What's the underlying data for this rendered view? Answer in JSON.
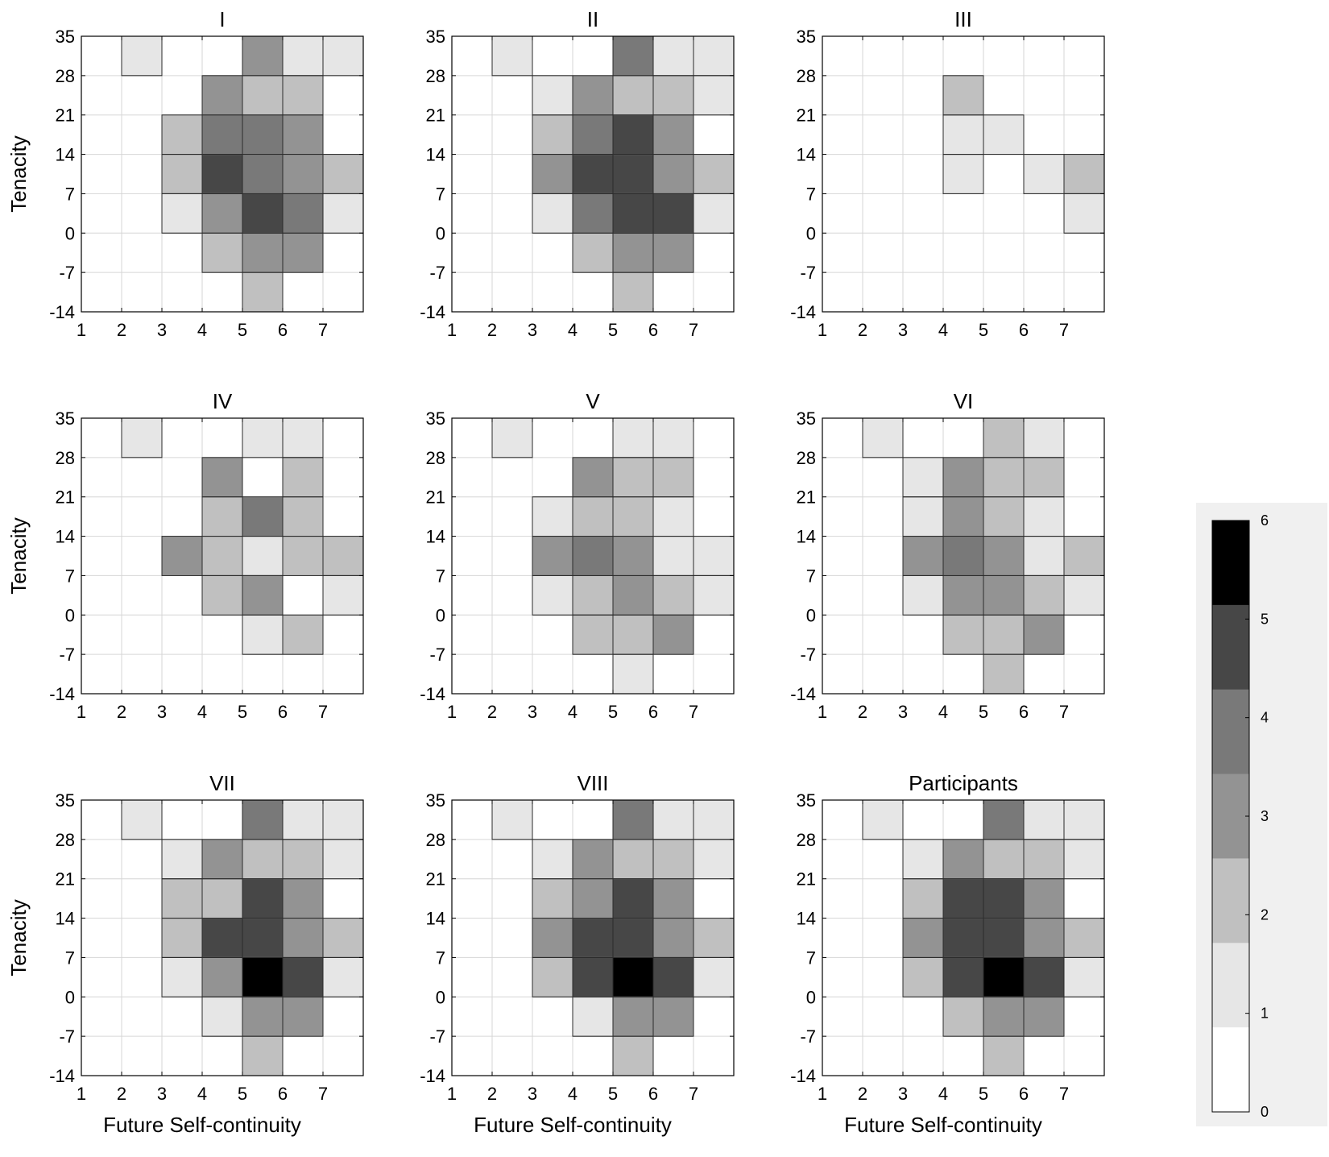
{
  "chart_data": {
    "type": "heatmap",
    "x_ticks": [
      1,
      2,
      3,
      4,
      5,
      6,
      7
    ],
    "xlim": [
      1,
      8
    ],
    "y_ticks": [
      -14,
      -7,
      0,
      7,
      14,
      21,
      28,
      35
    ],
    "ylim": [
      -14,
      35
    ],
    "xlabel": "Future Self-continuity",
    "ylabel": "Tenacity",
    "y_rows_top_to_bottom": [
      "28 to 35",
      "21 to 28",
      "14 to 21",
      "7 to 14",
      "0 to 7",
      "-7 to 0",
      "-14 to -7"
    ],
    "x_cols_left_to_right": [
      "1 to 2",
      "2 to 3",
      "3 to 4",
      "4 to 5",
      "5 to 6",
      "6 to 7",
      "7 to 8"
    ],
    "colorbar": {
      "min": 0,
      "max": 6,
      "ticks": [
        "0",
        "1",
        "2",
        "3",
        "4",
        "5",
        "6"
      ]
    },
    "panels": [
      {
        "title": "I",
        "matrix": [
          [
            0,
            1,
            0,
            0,
            3,
            1,
            1
          ],
          [
            0,
            0,
            0,
            3,
            2,
            2,
            0
          ],
          [
            0,
            0,
            2,
            4,
            4,
            3,
            0
          ],
          [
            0,
            0,
            2,
            5,
            4,
            3,
            2
          ],
          [
            0,
            0,
            1,
            3,
            5,
            4,
            1
          ],
          [
            0,
            0,
            0,
            2,
            3,
            3,
            0
          ],
          [
            0,
            0,
            0,
            0,
            2,
            0,
            0
          ]
        ]
      },
      {
        "title": "II",
        "matrix": [
          [
            0,
            1,
            0,
            0,
            4,
            1,
            1
          ],
          [
            0,
            0,
            1,
            3,
            2,
            2,
            1
          ],
          [
            0,
            0,
            2,
            4,
            5,
            3,
            0
          ],
          [
            0,
            0,
            3,
            5,
            5,
            3,
            2
          ],
          [
            0,
            0,
            1,
            4,
            5,
            5,
            1
          ],
          [
            0,
            0,
            0,
            2,
            3,
            3,
            0
          ],
          [
            0,
            0,
            0,
            0,
            2,
            0,
            0
          ]
        ]
      },
      {
        "title": "III",
        "matrix": [
          [
            0,
            0,
            0,
            0,
            0,
            0,
            0
          ],
          [
            0,
            0,
            0,
            2,
            0,
            0,
            0
          ],
          [
            0,
            0,
            0,
            1,
            1,
            0,
            0
          ],
          [
            0,
            0,
            0,
            1,
            0,
            1,
            2
          ],
          [
            0,
            0,
            0,
            0,
            0,
            0,
            1
          ],
          [
            0,
            0,
            0,
            0,
            0,
            0,
            0
          ],
          [
            0,
            0,
            0,
            0,
            0,
            0,
            0
          ]
        ]
      },
      {
        "title": "IV",
        "matrix": [
          [
            0,
            1,
            0,
            0,
            1,
            1,
            0
          ],
          [
            0,
            0,
            0,
            3,
            0,
            2,
            0
          ],
          [
            0,
            0,
            0,
            2,
            4,
            2,
            0
          ],
          [
            0,
            0,
            3,
            2,
            1,
            2,
            2
          ],
          [
            0,
            0,
            0,
            2,
            3,
            0,
            1
          ],
          [
            0,
            0,
            0,
            0,
            1,
            2,
            0
          ],
          [
            0,
            0,
            0,
            0,
            0,
            0,
            0
          ]
        ]
      },
      {
        "title": "V",
        "matrix": [
          [
            0,
            1,
            0,
            0,
            1,
            1,
            0
          ],
          [
            0,
            0,
            0,
            3,
            2,
            2,
            0
          ],
          [
            0,
            0,
            1,
            2,
            2,
            1,
            0
          ],
          [
            0,
            0,
            3,
            4,
            3,
            1,
            1
          ],
          [
            0,
            0,
            1,
            2,
            3,
            2,
            1
          ],
          [
            0,
            0,
            0,
            2,
            2,
            3,
            0
          ],
          [
            0,
            0,
            0,
            0,
            1,
            0,
            0
          ]
        ]
      },
      {
        "title": "VI",
        "matrix": [
          [
            0,
            1,
            0,
            0,
            2,
            1,
            0
          ],
          [
            0,
            0,
            1,
            3,
            2,
            2,
            0
          ],
          [
            0,
            0,
            1,
            3,
            2,
            1,
            0
          ],
          [
            0,
            0,
            3,
            4,
            3,
            1,
            2
          ],
          [
            0,
            0,
            1,
            3,
            3,
            2,
            1
          ],
          [
            0,
            0,
            0,
            2,
            2,
            3,
            0
          ],
          [
            0,
            0,
            0,
            0,
            2,
            0,
            0
          ]
        ]
      },
      {
        "title": "VII",
        "matrix": [
          [
            0,
            1,
            0,
            0,
            4,
            1,
            1
          ],
          [
            0,
            0,
            1,
            3,
            2,
            2,
            1
          ],
          [
            0,
            0,
            2,
            2,
            5,
            3,
            0
          ],
          [
            0,
            0,
            2,
            5,
            5,
            3,
            2
          ],
          [
            0,
            0,
            1,
            3,
            6,
            5,
            1
          ],
          [
            0,
            0,
            0,
            1,
            3,
            3,
            0
          ],
          [
            0,
            0,
            0,
            0,
            2,
            0,
            0
          ]
        ]
      },
      {
        "title": "VIII",
        "matrix": [
          [
            0,
            1,
            0,
            0,
            4,
            1,
            1
          ],
          [
            0,
            0,
            1,
            3,
            2,
            2,
            1
          ],
          [
            0,
            0,
            2,
            3,
            5,
            3,
            0
          ],
          [
            0,
            0,
            3,
            5,
            5,
            3,
            2
          ],
          [
            0,
            0,
            2,
            5,
            6,
            5,
            1
          ],
          [
            0,
            0,
            0,
            1,
            3,
            3,
            0
          ],
          [
            0,
            0,
            0,
            0,
            2,
            0,
            0
          ]
        ]
      },
      {
        "title": "Participants",
        "matrix": [
          [
            0,
            1,
            0,
            0,
            4,
            1,
            1
          ],
          [
            0,
            0,
            1,
            3,
            2,
            2,
            1
          ],
          [
            0,
            0,
            2,
            5,
            5,
            3,
            0
          ],
          [
            0,
            0,
            3,
            5,
            5,
            3,
            2
          ],
          [
            0,
            0,
            2,
            5,
            6,
            5,
            1
          ],
          [
            0,
            0,
            0,
            2,
            3,
            3,
            0
          ],
          [
            0,
            0,
            0,
            0,
            2,
            0,
            0
          ]
        ]
      }
    ],
    "grayscale": [
      "#ffffff",
      "#e6e6e6",
      "#c0c0c0",
      "#939393",
      "#797979",
      "#474747",
      "#000000"
    ]
  }
}
